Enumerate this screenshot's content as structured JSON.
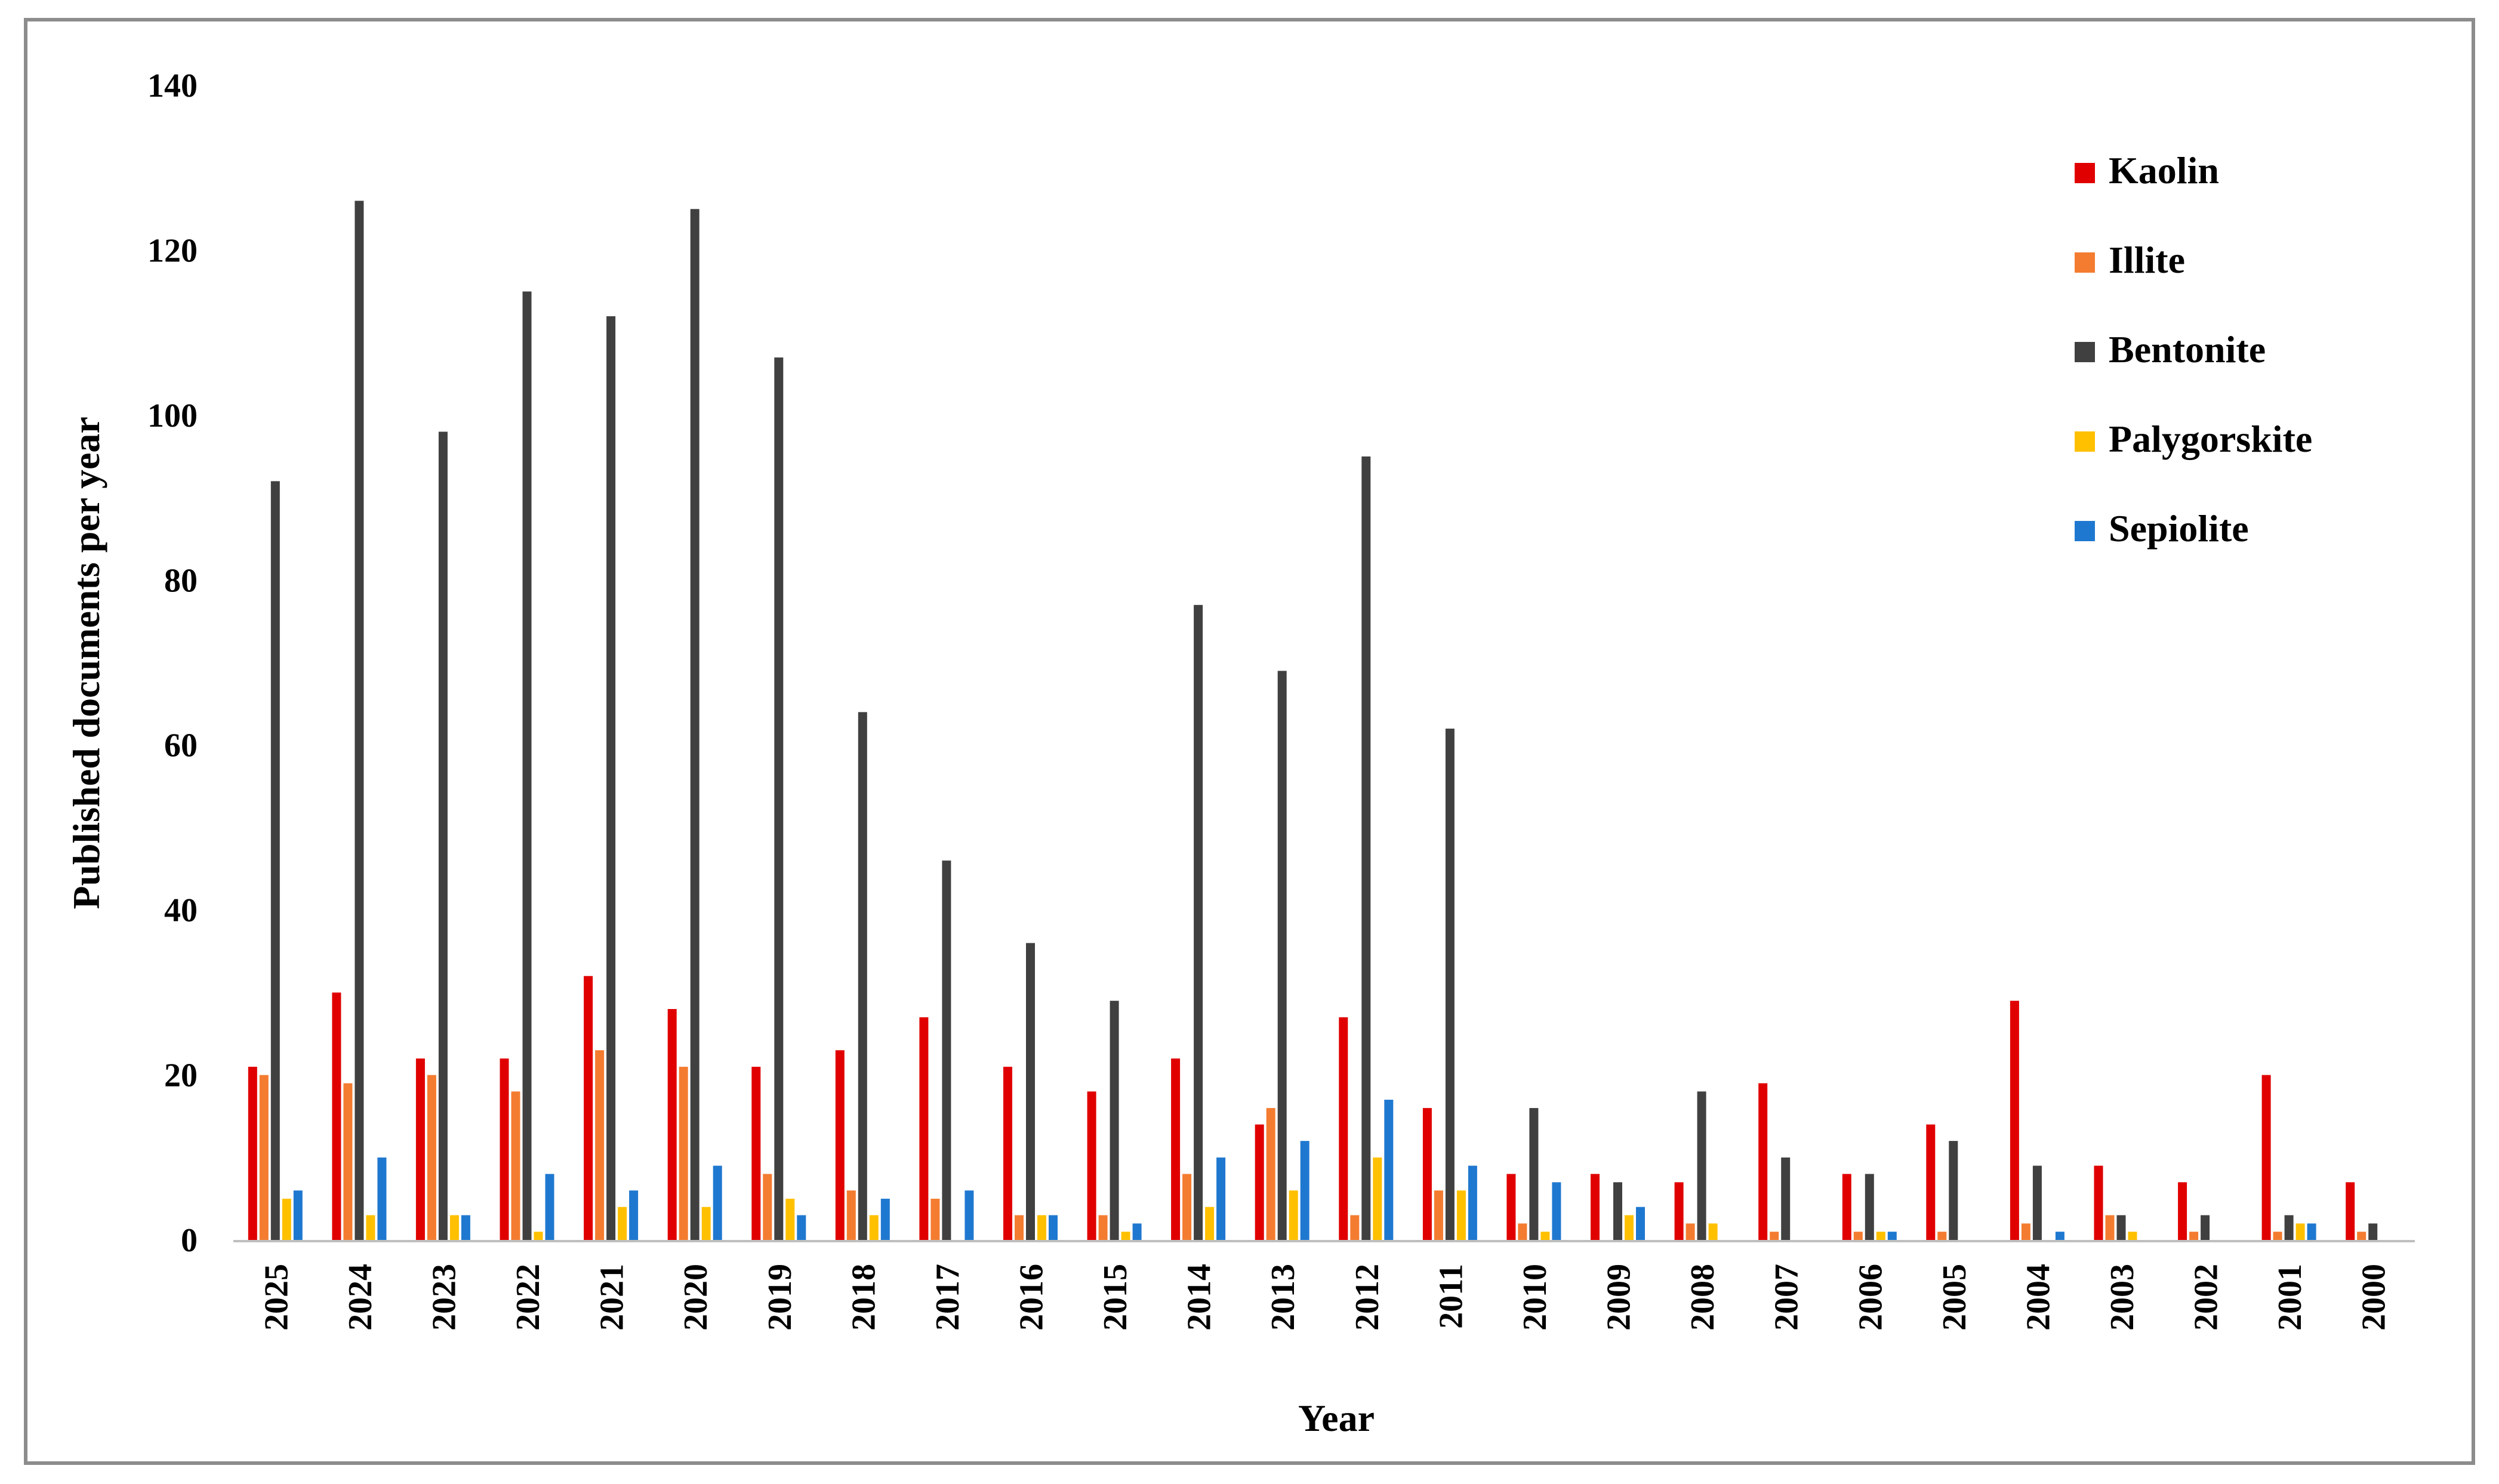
{
  "chart_data": {
    "type": "bar",
    "title": "",
    "xlabel": "Year",
    "ylabel": "Published documents per year",
    "ylim": [
      0,
      140
    ],
    "yticks": [
      0,
      20,
      40,
      60,
      80,
      100,
      120,
      140
    ],
    "grid": false,
    "legend_position": "top-right",
    "categories": [
      "2025",
      "2024",
      "2023",
      "2022",
      "2021",
      "2020",
      "2019",
      "2018",
      "2017",
      "2016",
      "2015",
      "2014",
      "2013",
      "2012",
      "2011",
      "2010",
      "2009",
      "2008",
      "2007",
      "2006",
      "2005",
      "2004",
      "2003",
      "2002",
      "2001",
      "2000"
    ],
    "series": [
      {
        "name": "Kaolin",
        "color": "#e00000",
        "values": [
          21,
          30,
          22,
          22,
          32,
          28,
          21,
          23,
          27,
          21,
          18,
          22,
          14,
          27,
          16,
          8,
          8,
          7,
          19,
          8,
          14,
          29,
          9,
          7,
          20,
          7
        ]
      },
      {
        "name": "Illite",
        "color": "#f47c30",
        "values": [
          20,
          19,
          20,
          18,
          23,
          21,
          8,
          6,
          5,
          3,
          3,
          8,
          16,
          3,
          6,
          2,
          0,
          2,
          1,
          1,
          1,
          2,
          3,
          1,
          1,
          1
        ]
      },
      {
        "name": "Bentonite",
        "color": "#404040",
        "values": [
          92,
          126,
          98,
          115,
          112,
          125,
          107,
          64,
          46,
          36,
          29,
          77,
          69,
          95,
          62,
          16,
          7,
          18,
          10,
          8,
          12,
          9,
          3,
          3,
          3,
          2
        ]
      },
      {
        "name": "Palygorskite",
        "color": "#ffc000",
        "values": [
          5,
          3,
          3,
          1,
          4,
          4,
          5,
          3,
          0,
          3,
          1,
          4,
          6,
          10,
          6,
          1,
          3,
          2,
          0,
          1,
          0,
          0,
          1,
          0,
          2,
          0
        ]
      },
      {
        "name": "Sepiolite",
        "color": "#1f78d0",
        "values": [
          6,
          10,
          3,
          8,
          6,
          9,
          3,
          5,
          6,
          3,
          2,
          10,
          12,
          17,
          9,
          7,
          4,
          0,
          0,
          1,
          0,
          1,
          0,
          0,
          2,
          0
        ]
      }
    ]
  }
}
